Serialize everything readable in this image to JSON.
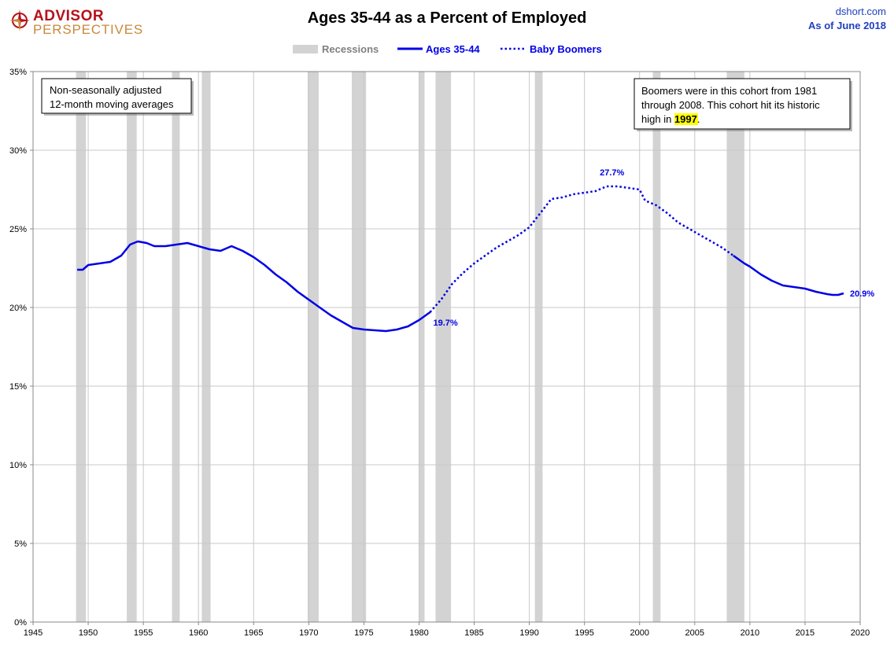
{
  "header": {
    "logo_line1": "ADVISOR",
    "logo_line2": "PERSPECTIVES",
    "title": "Ages 35-44 as a Percent of Employed",
    "site": "dshort.com",
    "as_of": "As of June 2018"
  },
  "legend": {
    "recessions": "Recessions",
    "series1": "Ages 35-44",
    "series2": "Baby Boomers"
  },
  "notes": {
    "left_line1": "Non-seasonally adjusted",
    "left_line2": "12-month moving averages",
    "right_line1": "Boomers were in this cohort from 1981",
    "right_line2": "through 2008.  This cohort hit its historic",
    "right_line3_prefix": "high in ",
    "right_highlight": "1997",
    "right_line3_suffix": "."
  },
  "colors": {
    "series": "#0000e6",
    "recession": "#d3d3d3",
    "grid": "#c8c8c8",
    "highlight": "#ffff00"
  },
  "chart_data": {
    "type": "line",
    "title": "Ages 35-44 as a Percent of Employed",
    "xlim": [
      1945,
      2020
    ],
    "ylim": [
      0,
      35
    ],
    "x_ticks": [
      1945,
      1950,
      1955,
      1960,
      1965,
      1970,
      1975,
      1980,
      1985,
      1990,
      1995,
      2000,
      2005,
      2010,
      2015,
      2020
    ],
    "y_ticks": [
      0,
      5,
      10,
      15,
      20,
      25,
      30,
      35
    ],
    "y_tick_labels": [
      "0%",
      "5%",
      "10%",
      "15%",
      "20%",
      "25%",
      "30%",
      "35%"
    ],
    "grid": true,
    "legend_position": "top-center",
    "recessions": [
      [
        1948.9,
        1949.8
      ],
      [
        1953.5,
        1954.4
      ],
      [
        1957.6,
        1958.3
      ],
      [
        1960.3,
        1961.1
      ],
      [
        1969.9,
        1970.9
      ],
      [
        1973.9,
        1975.2
      ],
      [
        1980.0,
        1980.5
      ],
      [
        1981.5,
        1982.9
      ],
      [
        1990.5,
        1991.2
      ],
      [
        2001.2,
        2001.9
      ],
      [
        2007.9,
        2009.5
      ]
    ],
    "series": [
      {
        "name": "Ages 35-44",
        "style": "solid",
        "points": [
          [
            1949.0,
            22.4
          ],
          [
            1949.5,
            22.4
          ],
          [
            1950.0,
            22.7
          ],
          [
            1951.0,
            22.8
          ],
          [
            1952.0,
            22.9
          ],
          [
            1953.0,
            23.3
          ],
          [
            1953.8,
            24.0
          ],
          [
            1954.5,
            24.2
          ],
          [
            1955.3,
            24.1
          ],
          [
            1956.0,
            23.9
          ],
          [
            1957.0,
            23.9
          ],
          [
            1958.0,
            24.0
          ],
          [
            1959.0,
            24.1
          ],
          [
            1960.0,
            23.9
          ],
          [
            1961.0,
            23.7
          ],
          [
            1962.0,
            23.6
          ],
          [
            1963.0,
            23.9
          ],
          [
            1964.0,
            23.6
          ],
          [
            1965.0,
            23.2
          ],
          [
            1966.0,
            22.7
          ],
          [
            1967.0,
            22.1
          ],
          [
            1968.0,
            21.6
          ],
          [
            1969.0,
            21.0
          ],
          [
            1970.0,
            20.5
          ],
          [
            1971.0,
            20.0
          ],
          [
            1972.0,
            19.5
          ],
          [
            1973.0,
            19.1
          ],
          [
            1974.0,
            18.7
          ],
          [
            1975.0,
            18.6
          ],
          [
            1976.0,
            18.55
          ],
          [
            1977.0,
            18.5
          ],
          [
            1978.0,
            18.6
          ],
          [
            1979.0,
            18.8
          ],
          [
            1980.0,
            19.2
          ],
          [
            1981.0,
            19.7
          ]
        ]
      },
      {
        "name": "Baby Boomers",
        "style": "dotted",
        "points": [
          [
            1981.0,
            19.7
          ],
          [
            1982.0,
            20.5
          ],
          [
            1983.0,
            21.5
          ],
          [
            1984.0,
            22.2
          ],
          [
            1985.0,
            22.8
          ],
          [
            1986.0,
            23.3
          ],
          [
            1987.0,
            23.8
          ],
          [
            1988.0,
            24.2
          ],
          [
            1989.0,
            24.6
          ],
          [
            1990.0,
            25.1
          ],
          [
            1991.0,
            26.0
          ],
          [
            1992.0,
            26.9
          ],
          [
            1993.0,
            27.0
          ],
          [
            1994.0,
            27.2
          ],
          [
            1995.0,
            27.3
          ],
          [
            1996.0,
            27.4
          ],
          [
            1997.0,
            27.7
          ],
          [
            1998.0,
            27.7
          ],
          [
            1999.0,
            27.6
          ],
          [
            2000.0,
            27.5
          ],
          [
            2000.5,
            26.8
          ],
          [
            2001.5,
            26.5
          ],
          [
            2002.5,
            26.0
          ],
          [
            2003.5,
            25.4
          ],
          [
            2004.5,
            25.0
          ],
          [
            2005.5,
            24.6
          ],
          [
            2006.5,
            24.2
          ],
          [
            2007.5,
            23.8
          ],
          [
            2008.5,
            23.3
          ]
        ]
      },
      {
        "name": "Ages 35-44",
        "style": "solid",
        "points": [
          [
            2008.5,
            23.3
          ],
          [
            2009.5,
            22.8
          ],
          [
            2010.0,
            22.6
          ],
          [
            2011.0,
            22.1
          ],
          [
            2012.0,
            21.7
          ],
          [
            2013.0,
            21.4
          ],
          [
            2014.0,
            21.3
          ],
          [
            2015.0,
            21.2
          ],
          [
            2016.0,
            21.0
          ],
          [
            2017.0,
            20.85
          ],
          [
            2017.5,
            20.8
          ],
          [
            2018.0,
            20.8
          ],
          [
            2018.5,
            20.9
          ]
        ]
      }
    ],
    "annotations": [
      {
        "text": "19.7%",
        "x": 1981.0,
        "y": 19.7,
        "anchor": "below-right"
      },
      {
        "text": "27.7%",
        "x": 1997.5,
        "y": 27.7,
        "anchor": "above"
      },
      {
        "text": "20.9%",
        "x": 2018.5,
        "y": 20.9,
        "anchor": "right"
      }
    ]
  }
}
